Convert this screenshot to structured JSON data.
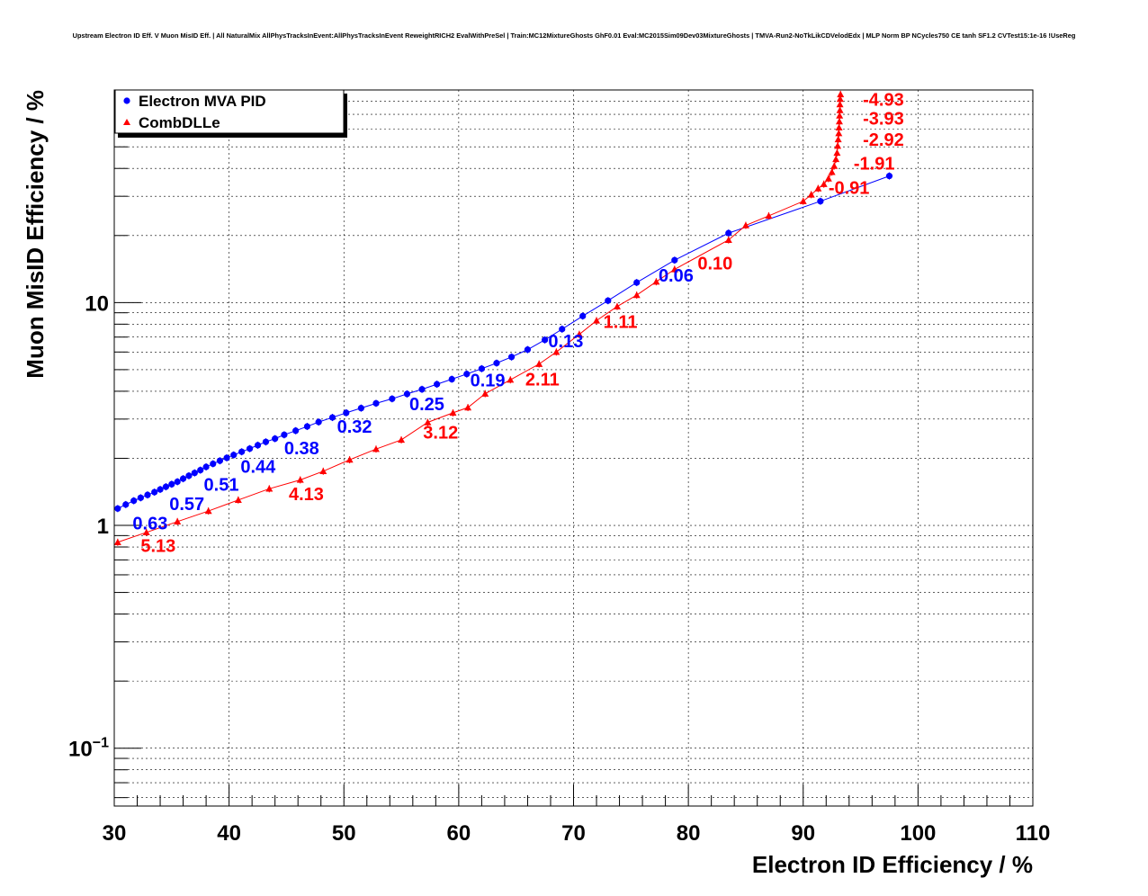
{
  "header": {
    "title": "Upstream Electron ID Eff. V Muon MisID Eff. | All NaturalMix AllPhysTracksInEvent:AllPhysTracksInEvent ReweightRICH2 EvalWithPreSel | Train:MC12MixtureGhosts GhF0.01 Eval:MC2015Sim09Dev03MixtureGhosts | TMVA-Run2-NoTkLikCDVelodEdx | MLP Norm BP NCycles750 CE tanh SF1.2 CVTest15:1e-16 !UseReg"
  },
  "chart_data": {
    "type": "line",
    "xlabel": "Electron ID Efficiency / %",
    "ylabel": "Muon MisID Efficiency / %",
    "xlim": [
      30,
      110
    ],
    "ylim": [
      0.055,
      90
    ],
    "y_scale": "log",
    "x_ticks": [
      30,
      40,
      50,
      60,
      70,
      80,
      90,
      100,
      110
    ],
    "x_tick_labels": [
      "30",
      "40",
      "50",
      "60",
      "70",
      "80",
      "90",
      "100",
      "110"
    ],
    "y_ticks": [
      0.1,
      1,
      10
    ],
    "y_tick_labels": [
      {
        "base": "10",
        "exp": "−1"
      },
      {
        "base": "1",
        "exp": ""
      },
      {
        "base": "10",
        "exp": ""
      }
    ],
    "grid": true,
    "legend_position": "top-left",
    "series": [
      {
        "name": "Electron MVA PID",
        "color": "#0000ff",
        "marker": "circle",
        "x": [
          30.3,
          31.0,
          31.7,
          32.3,
          32.9,
          33.5,
          34.0,
          34.5,
          35.0,
          35.5,
          36.0,
          36.5,
          37.0,
          37.5,
          38.0,
          38.6,
          39.2,
          39.8,
          40.4,
          41.1,
          41.8,
          42.5,
          43.2,
          44.0,
          44.8,
          45.8,
          46.8,
          47.8,
          49.0,
          50.2,
          51.5,
          52.8,
          54.2,
          55.5,
          56.8,
          58.1,
          59.4,
          60.7,
          62.0,
          63.3,
          64.6,
          66.0,
          67.5,
          69.0,
          70.8,
          73.0,
          75.5,
          78.8,
          83.5,
          91.5,
          97.5
        ],
        "y": [
          1.19,
          1.24,
          1.29,
          1.33,
          1.37,
          1.41,
          1.45,
          1.49,
          1.53,
          1.57,
          1.62,
          1.67,
          1.72,
          1.77,
          1.83,
          1.89,
          1.95,
          2.01,
          2.07,
          2.14,
          2.21,
          2.29,
          2.37,
          2.45,
          2.55,
          2.66,
          2.78,
          2.91,
          3.05,
          3.2,
          3.36,
          3.53,
          3.7,
          3.89,
          4.08,
          4.3,
          4.53,
          4.78,
          5.05,
          5.35,
          5.7,
          6.15,
          6.8,
          7.6,
          8.7,
          10.2,
          12.3,
          15.5,
          20.5,
          28.5,
          37.0
        ]
      },
      {
        "name": "CombDLLe",
        "color": "#ff0000",
        "marker": "triangle",
        "x": [
          30.3,
          32.8,
          35.5,
          38.2,
          40.8,
          43.5,
          46.2,
          48.2,
          50.5,
          52.8,
          55.0,
          57.3,
          59.5,
          60.8,
          62.3,
          64.5,
          67.0,
          68.5,
          70.5,
          72.0,
          73.8,
          75.5,
          77.2,
          78.8,
          83.5,
          85.0,
          87.0,
          90.0,
          90.7,
          91.3,
          91.8,
          92.2,
          92.5,
          92.7,
          92.85,
          92.95,
          93.0,
          93.05,
          93.1,
          93.12,
          93.15,
          93.17,
          93.2,
          93.2,
          93.22,
          93.25
        ],
        "y": [
          0.84,
          0.93,
          1.04,
          1.16,
          1.3,
          1.46,
          1.6,
          1.75,
          1.97,
          2.2,
          2.42,
          2.9,
          3.2,
          3.38,
          3.9,
          4.5,
          5.3,
          6.0,
          7.2,
          8.3,
          9.6,
          10.8,
          12.4,
          14.1,
          19.1,
          22.2,
          24.5,
          28.5,
          30.5,
          32.5,
          34.0,
          36.0,
          38.5,
          41.0,
          44.0,
          47.0,
          50.5,
          54.0,
          57.5,
          61.0,
          65.0,
          69.0,
          73.0,
          77.5,
          82.0,
          86.0
        ]
      }
    ],
    "annotations": [
      {
        "text": "0.63",
        "series": "Electron MVA PID",
        "x": 31.6,
        "y": 0.96
      },
      {
        "text": "0.57",
        "series": "Electron MVA PID",
        "x": 34.8,
        "y": 1.17
      },
      {
        "text": "0.51",
        "series": "Electron MVA PID",
        "x": 37.8,
        "y": 1.43
      },
      {
        "text": "0.44",
        "series": "Electron MVA PID",
        "x": 41.0,
        "y": 1.72
      },
      {
        "text": "0.38",
        "series": "Electron MVA PID",
        "x": 44.8,
        "y": 2.08
      },
      {
        "text": "0.32",
        "series": "Electron MVA PID",
        "x": 49.4,
        "y": 2.6
      },
      {
        "text": "0.25",
        "series": "Electron MVA PID",
        "x": 55.7,
        "y": 3.28
      },
      {
        "text": "0.19",
        "series": "Electron MVA PID",
        "x": 61.0,
        "y": 4.2
      },
      {
        "text": "0.13",
        "series": "Electron MVA PID",
        "x": 67.8,
        "y": 6.3
      },
      {
        "text": "0.06",
        "series": "Electron MVA PID",
        "x": 77.4,
        "y": 12.4
      },
      {
        "text": "5.13",
        "series": "CombDLLe",
        "x": 32.3,
        "y": 0.76
      },
      {
        "text": "4.13",
        "series": "CombDLLe",
        "x": 45.2,
        "y": 1.3
      },
      {
        "text": "3.12",
        "series": "CombDLLe",
        "x": 56.9,
        "y": 2.45
      },
      {
        "text": "2.11",
        "series": "CombDLLe",
        "x": 65.8,
        "y": 4.25
      },
      {
        "text": "1.11",
        "series": "CombDLLe",
        "x": 72.6,
        "y": 7.7
      },
      {
        "text": "0.10",
        "series": "CombDLLe",
        "x": 80.8,
        "y": 14.1
      },
      {
        "text": "-0.91",
        "series": "CombDLLe",
        "x": 92.2,
        "y": 30.8
      },
      {
        "text": "-1.91",
        "series": "CombDLLe",
        "x": 94.4,
        "y": 39.5
      },
      {
        "text": "-2.92",
        "series": "CombDLLe",
        "x": 95.2,
        "y": 50.5
      },
      {
        "text": "-3.93",
        "series": "CombDLLe",
        "x": 95.2,
        "y": 63.0
      },
      {
        "text": "-4.93",
        "series": "CombDLLe",
        "x": 95.2,
        "y": 76.5
      }
    ]
  }
}
